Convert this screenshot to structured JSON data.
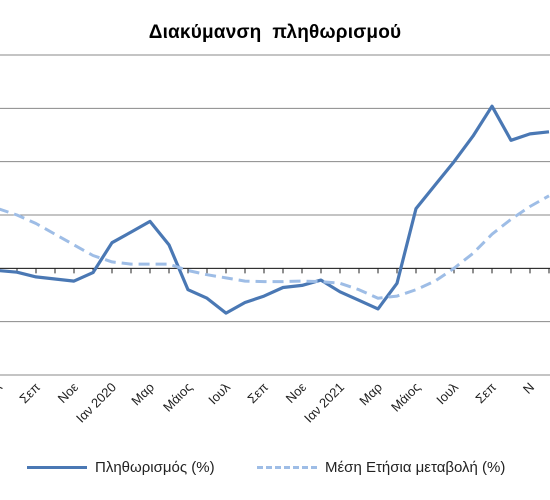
{
  "chart_data": {
    "type": "line",
    "title": "Διακύμανση  πληθωρισμού",
    "tick_labels": [
      {
        "label": "Ιουλ",
        "index": 0
      },
      {
        "label": "Σεπ",
        "index": 2
      },
      {
        "label": "Νοε",
        "index": 4
      },
      {
        "label": "Ιαν 2020",
        "index": 6
      },
      {
        "label": "Μαρ",
        "index": 8
      },
      {
        "label": "Μάιος",
        "index": 10
      },
      {
        "label": "Ιουλ",
        "index": 12
      },
      {
        "label": "Σεπ",
        "index": 14
      },
      {
        "label": "Νοε",
        "index": 16
      },
      {
        "label": "Ιαν 2021",
        "index": 18
      },
      {
        "label": "Μαρ",
        "index": 20
      },
      {
        "label": "Μάιος",
        "index": 22
      },
      {
        "label": "Ιουλ",
        "index": 24
      },
      {
        "label": "Σεπ",
        "index": 26
      },
      {
        "label": "Ν",
        "index": 28
      }
    ],
    "grid": true,
    "legend_position": "bottom",
    "series": [
      {
        "name": "Πληθωρισμός (%)",
        "style": "solid",
        "color": "#4a78b4",
        "values": [
          -0.1,
          -0.18,
          -0.4,
          -0.5,
          -0.6,
          -0.2,
          1.2,
          1.7,
          2.2,
          1.1,
          -1.0,
          -1.4,
          -2.1,
          -1.6,
          -1.3,
          -0.9,
          -0.8,
          -0.55,
          -1.1,
          -1.5,
          -1.9,
          -0.7,
          2.8,
          3.9,
          5.0,
          6.2,
          7.6,
          6.0,
          6.3,
          6.4
        ]
      },
      {
        "name": "Μέση Ετήσια μεταβολή (%)",
        "style": "dashed",
        "color": "#9ebde6",
        "values": [
          2.8,
          2.5,
          2.1,
          1.6,
          1.1,
          0.6,
          0.3,
          0.2,
          0.2,
          0.2,
          -0.1,
          -0.3,
          -0.45,
          -0.6,
          -0.62,
          -0.62,
          -0.6,
          -0.62,
          -0.7,
          -1.0,
          -1.4,
          -1.3,
          -1.0,
          -0.6,
          0.0,
          0.7,
          1.6,
          2.3,
          2.9,
          3.4
        ]
      }
    ],
    "ylim": [
      -5,
      10
    ]
  }
}
